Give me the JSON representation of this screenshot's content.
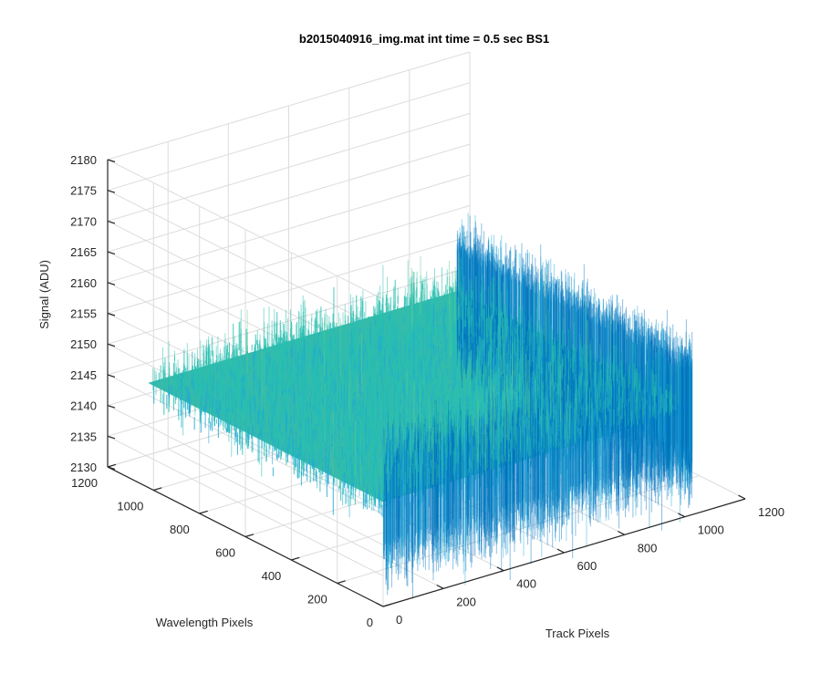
{
  "chart_data": {
    "type": "surface3d",
    "title": "b2015040916_img.mat  int time = 0.5 sec   BS1",
    "xlabel": "Track Pixels",
    "ylabel": "Wavelength Pixels",
    "zlabel": "Signal (ADU)",
    "xlim": [
      0,
      1200
    ],
    "ylim": [
      0,
      1200
    ],
    "zlim": [
      2130,
      2180
    ],
    "xticks": [
      "0",
      "200",
      "400",
      "600",
      "800",
      "1000",
      "1200"
    ],
    "yticks": [
      "0",
      "200",
      "400",
      "600",
      "800",
      "1000",
      "1200"
    ],
    "zticks": [
      "2130",
      "2135",
      "2140",
      "2145",
      "2150",
      "2155",
      "2160",
      "2165",
      "2170",
      "2175",
      "2180"
    ],
    "grid": true,
    "surface": {
      "x_range": [
        0,
        1024
      ],
      "y_range": [
        0,
        1024
      ],
      "mean_signal": 2147,
      "noise_range": [
        2132,
        2172
      ],
      "colormap": [
        "#0072bd",
        "#1ea9d6",
        "#29bfb0",
        "#6ecb8a",
        "#c3c95c"
      ]
    }
  },
  "colors": {
    "axis": "#262626",
    "grid": "#dcdcdc"
  }
}
